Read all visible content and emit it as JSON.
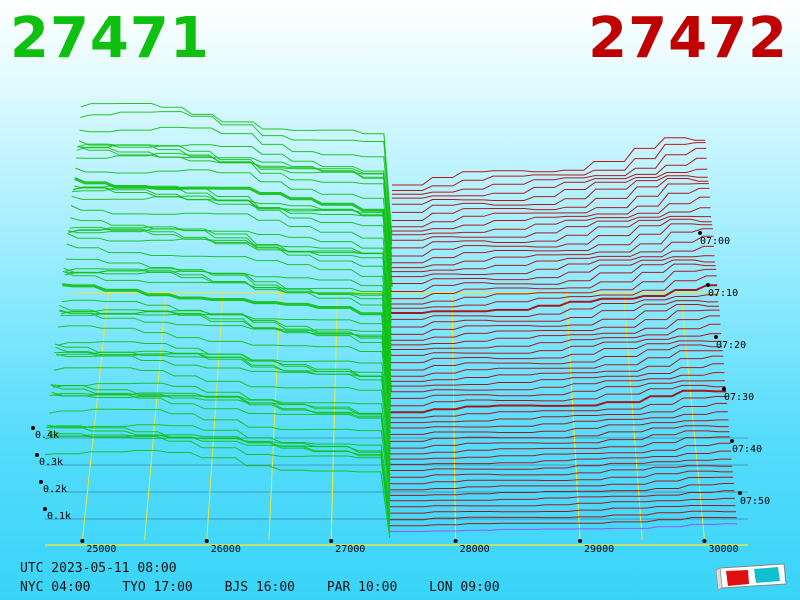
{
  "header": {
    "bid_price": "27471",
    "ask_price": "27472",
    "bid_color": "#10c010",
    "ask_color": "#c00000"
  },
  "footer": {
    "utc_time": "UTC 2023-05-11 08:00",
    "zones": [
      {
        "label": "NYC 04:00"
      },
      {
        "label": "TYO 17:00"
      },
      {
        "label": "BJS 16:00"
      },
      {
        "label": "PAR 10:00"
      },
      {
        "label": "LON 09:00"
      }
    ]
  },
  "glasses_icon": "3d-glasses-icon",
  "chart_data": {
    "type": "area",
    "title": "",
    "xlabel": "",
    "ylabel": "",
    "x_ticks": [
      {
        "label": "25000",
        "value": 25000
      },
      {
        "label": "26000",
        "value": 26000
      },
      {
        "label": "27000",
        "value": 27000
      },
      {
        "label": "28000",
        "value": 28000
      },
      {
        "label": "29000",
        "value": 29000
      },
      {
        "label": "30000",
        "value": 30000
      }
    ],
    "xlim": [
      24700,
      30350
    ],
    "mid_price": 27471.5,
    "z_ticks": [
      {
        "label": "0.1k",
        "value": 100
      },
      {
        "label": "0.2k",
        "value": 200
      },
      {
        "label": "0.3k",
        "value": 300
      },
      {
        "label": "0.4k",
        "value": 400
      }
    ],
    "time_ticks": [
      {
        "label": "07:00",
        "minutes_before": 60
      },
      {
        "label": "07:10",
        "minutes_before": 50
      },
      {
        "label": "07:20",
        "minutes_before": 40
      },
      {
        "label": "07:30",
        "minutes_before": 30
      },
      {
        "label": "07:40",
        "minutes_before": 20
      },
      {
        "label": "07:50",
        "minutes_before": 10
      }
    ],
    "series": [
      {
        "side": "bid",
        "color": "#10c010",
        "depth_profile": [
          [
            24700,
            330
          ],
          [
            25500,
            320
          ],
          [
            26000,
            308
          ],
          [
            26500,
            275
          ],
          [
            27000,
            262
          ],
          [
            27300,
            250
          ],
          [
            27471,
            0
          ]
        ]
      },
      {
        "side": "ask",
        "color": "#b00000",
        "depth_profile": [
          [
            27472,
            0
          ],
          [
            27600,
            40
          ],
          [
            28000,
            45
          ],
          [
            28500,
            47
          ],
          [
            29000,
            50
          ],
          [
            29500,
            58
          ],
          [
            30000,
            70
          ],
          [
            30350,
            72
          ]
        ]
      }
    ]
  }
}
